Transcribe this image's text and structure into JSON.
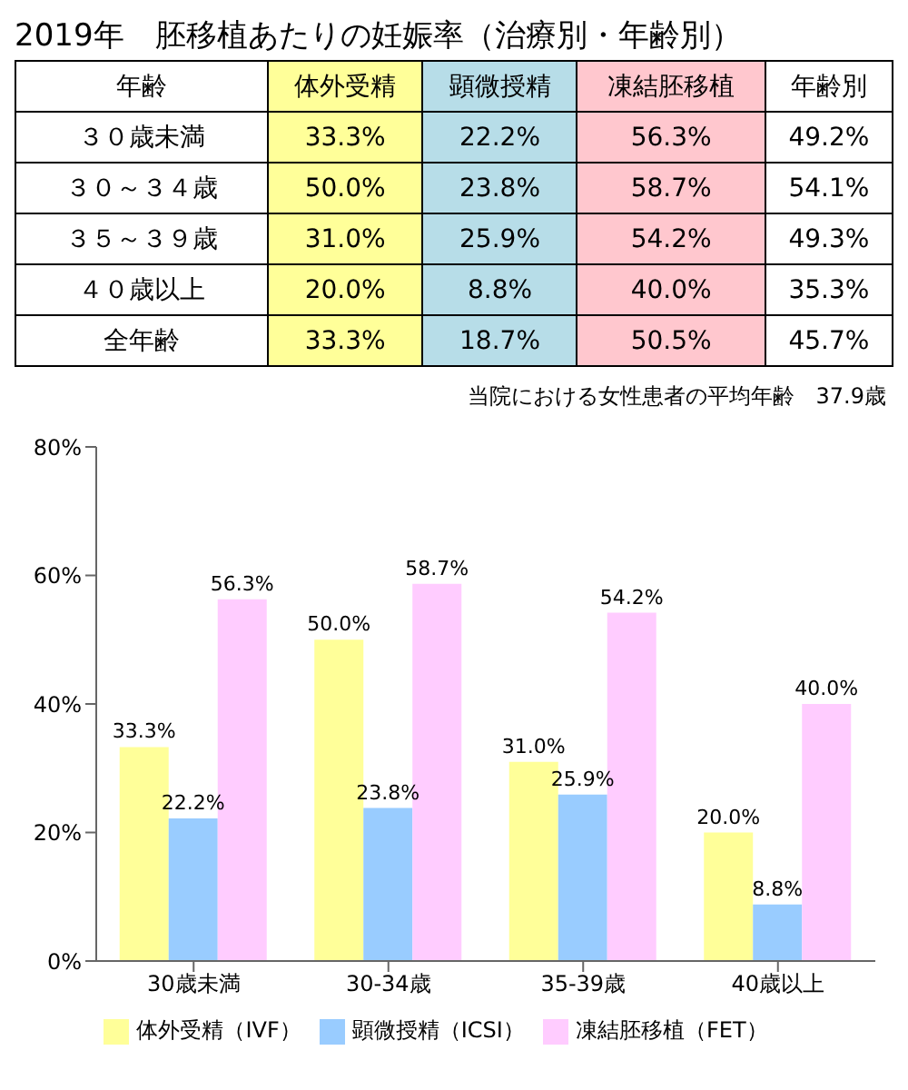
{
  "chart_data": [
    {
      "type": "heatmap",
      "title": "2019年　胚移植あたりの妊娠率（治療別・年齢別）",
      "ylabel": "年齢",
      "categories": [
        "体外受精",
        "顕微授精",
        "凍結胚移植",
        "年齢別"
      ],
      "colors": [
        "#ffff99",
        "#b7dde8",
        "#ffc7ce",
        "#ffffff"
      ],
      "y_categories": [
        "３０歳未満",
        "３０～３４歳",
        "３５～３９歳",
        "４０歳以上",
        "全年齢"
      ],
      "cells": [
        [
          33.3,
          22.2,
          56.3,
          49.2
        ],
        [
          50.0,
          23.8,
          58.7,
          54.1
        ],
        [
          31.0,
          25.9,
          54.2,
          49.3
        ],
        [
          20.0,
          8.8,
          40.0,
          35.3
        ],
        [
          33.3,
          18.7,
          50.5,
          45.7
        ]
      ],
      "cell_labels": [
        [
          "33.3%",
          "22.2%",
          "56.3%",
          "49.2%"
        ],
        [
          "50.0%",
          "23.8%",
          "58.7%",
          "54.1%"
        ],
        [
          "31.0%",
          "25.9%",
          "54.2%",
          "49.3%"
        ],
        [
          "20.0%",
          "8.8%",
          "40.0%",
          "35.3%"
        ],
        [
          "33.3%",
          "18.7%",
          "50.5%",
          "45.7%"
        ]
      ],
      "annotations": [
        "当院における女性患者の平均年齢　37.9歳"
      ]
    },
    {
      "type": "bar",
      "categories": [
        "30歳未満",
        "30-34歳",
        "35-39歳",
        "40歳以上"
      ],
      "series": [
        {
          "name": "体外受精（IVF）",
          "color": "#ffff99",
          "values": [
            33.3,
            50.0,
            31.0,
            20.0
          ],
          "value_labels": [
            "33.3%",
            "50.0%",
            "31.0%",
            "20.0%"
          ]
        },
        {
          "name": "顕微授精（ICSI）",
          "color": "#99ccff",
          "values": [
            22.2,
            23.8,
            25.9,
            8.8
          ],
          "value_labels": [
            "22.2%",
            "23.8%",
            "25.9%",
            "8.8%"
          ]
        },
        {
          "name": "凍結胚移植（FET）",
          "color": "#ffccff",
          "values": [
            56.3,
            58.7,
            54.2,
            40.0
          ],
          "value_labels": [
            "56.3%",
            "58.7%",
            "54.2%",
            "40.0%"
          ]
        }
      ],
      "ylim": [
        0,
        80
      ],
      "yticks": [
        {
          "value": 0,
          "label": "0%"
        },
        {
          "value": 20,
          "label": "20%"
        },
        {
          "value": 40,
          "label": "40%"
        },
        {
          "value": 60,
          "label": "60%"
        },
        {
          "value": 80,
          "label": "80%"
        }
      ],
      "grid": false,
      "legend": "bottom"
    }
  ]
}
